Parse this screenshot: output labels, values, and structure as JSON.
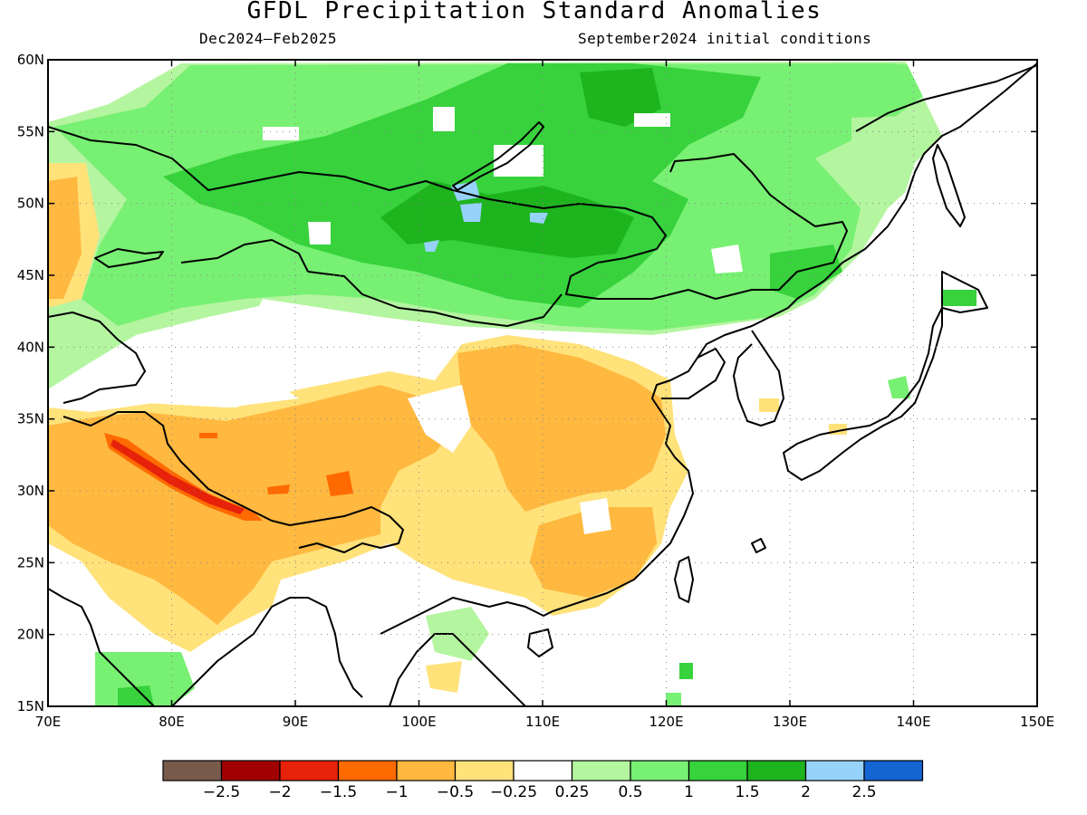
{
  "title": "GFDL Precipitation Standard Anomalies",
  "period": "Dec2024–Feb2025",
  "init": "September2024 initial conditions",
  "axes": {
    "lon_min": 70,
    "lon_max": 150,
    "lat_min": 15,
    "lat_max": 60,
    "lat_ticks": [
      "15N",
      "20N",
      "25N",
      "30N",
      "35N",
      "40N",
      "45N",
      "50N",
      "55N",
      "60N"
    ],
    "lon_ticks": [
      "70E",
      "80E",
      "90E",
      "100E",
      "110E",
      "120E",
      "130E",
      "140E",
      "150E"
    ],
    "grid": true
  },
  "colorbar": {
    "colors": [
      "#785a4b",
      "#a00000",
      "#e6220a",
      "#ff6a00",
      "#ffb840",
      "#ffe27a",
      "#ffffff",
      "#b4f5a0",
      "#78f073",
      "#37d23c",
      "#1eb41e",
      "#96d2fa",
      "#1464d2"
    ],
    "labels": [
      "−2.5",
      "−2",
      "−1.5",
      "−1",
      "−0.5",
      "−0.25",
      "0.25",
      "0.5",
      "1",
      "1.5",
      "2",
      "2.5"
    ]
  }
}
